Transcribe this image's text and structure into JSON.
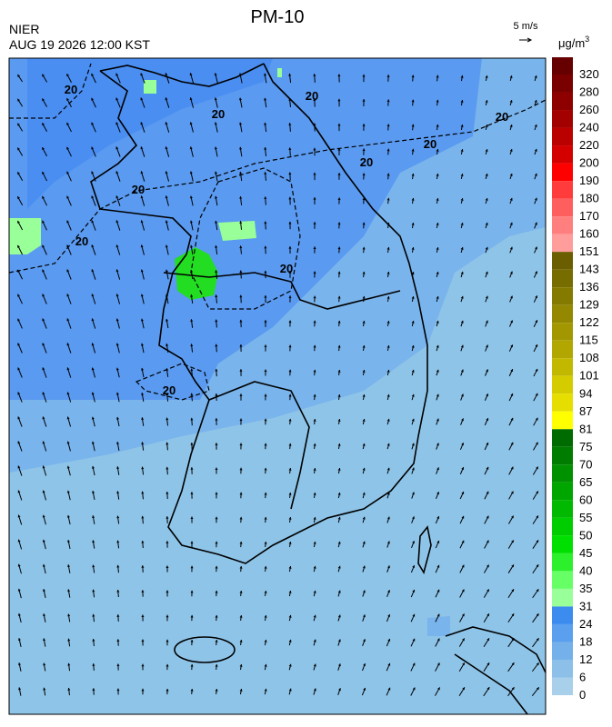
{
  "header": {
    "title": "PM-10",
    "agency": "NIER",
    "timestamp": "AUG 19 2026 12:00 KST",
    "wind_scale": "5 m/s",
    "unit": "μg/m",
    "unit_exponent": "3"
  },
  "map": {
    "contour_label": "20"
  },
  "colorbar": {
    "labels": [
      "320",
      "280",
      "260",
      "240",
      "220",
      "200",
      "190",
      "180",
      "170",
      "160",
      "151",
      "143",
      "136",
      "129",
      "122",
      "115",
      "108",
      "101",
      "94",
      "87",
      "81",
      "75",
      "70",
      "65",
      "60",
      "55",
      "50",
      "45",
      "40",
      "35",
      "31",
      "24",
      "18",
      "12",
      "6",
      "0"
    ],
    "colors": [
      "#660000",
      "#7a0000",
      "#8e0000",
      "#a30000",
      "#bb0000",
      "#d40000",
      "#ff0000",
      "#ff3b3b",
      "#ff5e5e",
      "#ff7f7f",
      "#ff9c9c",
      "#6b5e00",
      "#776c00",
      "#857a00",
      "#938800",
      "#a29700",
      "#b2a700",
      "#c3b800",
      "#d5cc00",
      "#e6de00",
      "#ffff00",
      "#006b00",
      "#007d00",
      "#009100",
      "#00a500",
      "#00b900",
      "#00cd00",
      "#00e000",
      "#2cf02c",
      "#66ff66",
      "#99ff99",
      "#3c8cf0",
      "#5aa0ee",
      "#74b0ea",
      "#8cc0e8",
      "#a8d0ea"
    ]
  }
}
